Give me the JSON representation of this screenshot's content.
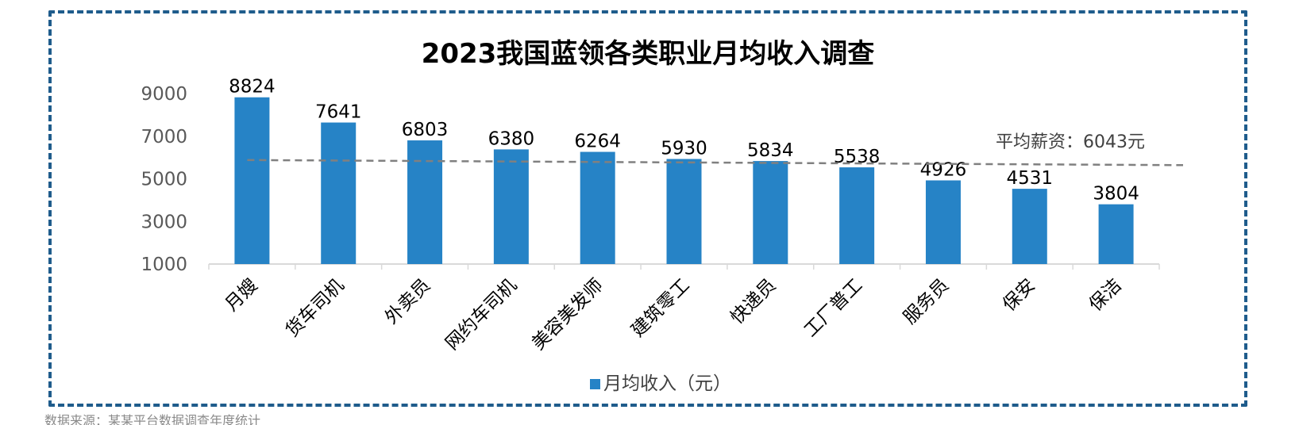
{
  "chart_data": {
    "type": "bar",
    "title": "2023我国蓝领各类职业月均收入调查",
    "categories": [
      "月嫂",
      "货车司机",
      "外卖员",
      "网约车司机",
      "美容美发师",
      "建筑零工",
      "快递员",
      "工厂普工",
      "服务员",
      "保安",
      "保洁"
    ],
    "series": [
      {
        "name": "月均收入（元）",
        "values": [
          8824,
          7641,
          6803,
          6380,
          6264,
          5930,
          5834,
          5538,
          4926,
          4531,
          3804
        ]
      }
    ],
    "ylim": [
      1000,
      9000
    ],
    "yticks": [
      "1000",
      "3000",
      "5000",
      "7000",
      "9000"
    ],
    "average_label": "平均薪资：6043元",
    "average_trend": [
      5880,
      5640
    ],
    "legend_position": "bottom",
    "grid": false,
    "colors": {
      "bar": "#2683c6",
      "trend": "#808080",
      "frame": "#1f5c8c"
    }
  },
  "footer": {
    "source": "数据来源：某某平台数据调查年度统计"
  }
}
